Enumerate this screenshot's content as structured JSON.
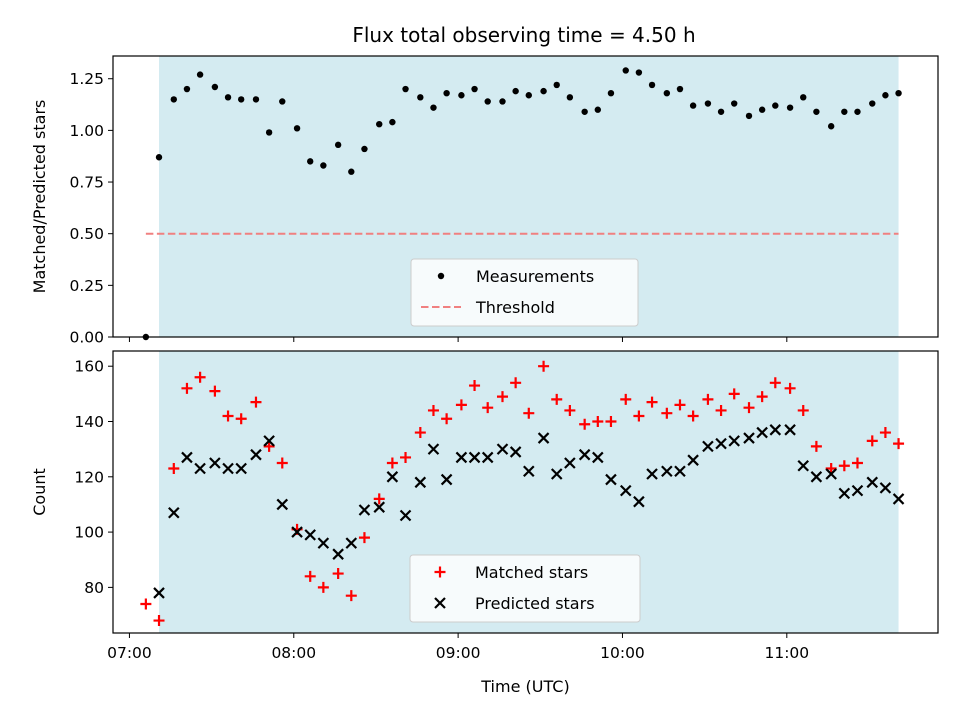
{
  "chart_data": {
    "title": "Flux total observing time = 4.50 h",
    "xlabel": "Time (UTC)",
    "x_ticks": [
      "07:00",
      "08:00",
      "09:00",
      "10:00",
      "11:00"
    ],
    "x_tick_values": [
      7.0,
      8.0,
      9.0,
      10.0,
      11.0
    ],
    "xlim": [
      6.9,
      11.92
    ],
    "observing_window": [
      7.18,
      11.68
    ],
    "colors": {
      "window": "#d4ebf1",
      "measurements": "#000000",
      "threshold": "#f08080",
      "matched": "#ff0000",
      "predicted": "#000000"
    },
    "panels": [
      {
        "type": "scatter",
        "ylabel": "Matched/Predicted stars",
        "ylim": [
          0.0,
          1.36
        ],
        "y_ticks": [
          "0.00",
          "0.25",
          "0.50",
          "0.75",
          "1.00",
          "1.25"
        ],
        "y_tick_values": [
          0.0,
          0.25,
          0.5,
          0.75,
          1.0,
          1.25
        ],
        "legend_position": "lower-center",
        "series": [
          {
            "name": "Measurements",
            "marker": "dot",
            "x": [
              7.1,
              7.18,
              7.27,
              7.35,
              7.43,
              7.52,
              7.6,
              7.68,
              7.77,
              7.85,
              7.93,
              8.02,
              8.1,
              8.18,
              8.27,
              8.35,
              8.43,
              8.52,
              8.6,
              8.68,
              8.77,
              8.85,
              8.93,
              9.02,
              9.1,
              9.18,
              9.27,
              9.35,
              9.43,
              9.52,
              9.6,
              9.68,
              9.77,
              9.85,
              9.93,
              10.02,
              10.1,
              10.18,
              10.27,
              10.35,
              10.43,
              10.52,
              10.6,
              10.68,
              10.77,
              10.85,
              10.93,
              11.02,
              11.1,
              11.18,
              11.27,
              11.35,
              11.43,
              11.52,
              11.6,
              11.68
            ],
            "y": [
              0.0,
              0.87,
              1.15,
              1.2,
              1.27,
              1.21,
              1.16,
              1.15,
              1.15,
              0.99,
              1.14,
              1.01,
              0.85,
              0.83,
              0.93,
              0.8,
              0.91,
              1.03,
              1.04,
              1.2,
              1.16,
              1.11,
              1.18,
              1.17,
              1.2,
              1.14,
              1.14,
              1.19,
              1.17,
              1.19,
              1.22,
              1.16,
              1.09,
              1.1,
              1.18,
              1.29,
              1.28,
              1.22,
              1.18,
              1.2,
              1.12,
              1.13,
              1.09,
              1.13,
              1.07,
              1.1,
              1.12,
              1.11,
              1.16,
              1.09,
              1.02,
              1.09,
              1.09,
              1.13,
              1.17,
              1.18
            ]
          },
          {
            "name": "Threshold",
            "marker": "dashed-line",
            "x": [
              7.1,
              11.68
            ],
            "y": [
              0.5,
              0.5
            ]
          }
        ]
      },
      {
        "type": "scatter",
        "ylabel": "Count",
        "ylim": [
          63.5,
          165.5
        ],
        "y_ticks": [
          "80",
          "100",
          "120",
          "140",
          "160"
        ],
        "y_tick_values": [
          80,
          100,
          120,
          140,
          160
        ],
        "legend_position": "lower-center",
        "series": [
          {
            "name": "Matched stars",
            "marker": "plus",
            "x": [
              7.1,
              7.18,
              7.27,
              7.35,
              7.43,
              7.52,
              7.6,
              7.68,
              7.77,
              7.85,
              7.93,
              8.02,
              8.1,
              8.18,
              8.27,
              8.35,
              8.43,
              8.52,
              8.6,
              8.68,
              8.77,
              8.85,
              8.93,
              9.02,
              9.1,
              9.18,
              9.27,
              9.35,
              9.43,
              9.52,
              9.6,
              9.68,
              9.77,
              9.85,
              9.93,
              10.02,
              10.1,
              10.18,
              10.27,
              10.35,
              10.43,
              10.52,
              10.6,
              10.68,
              10.77,
              10.85,
              10.93,
              11.02,
              11.1,
              11.18,
              11.27,
              11.35,
              11.43,
              11.52,
              11.6,
              11.68
            ],
            "y": [
              74,
              68,
              123,
              152,
              156,
              151,
              142,
              141,
              147,
              131,
              125,
              101,
              84,
              80,
              85,
              77,
              98,
              112,
              125,
              127,
              136,
              144,
              141,
              146,
              153,
              145,
              149,
              154,
              143,
              160,
              148,
              144,
              139,
              140,
              140,
              148,
              142,
              147,
              143,
              146,
              142,
              148,
              144,
              150,
              145,
              149,
              154,
              152,
              144,
              131,
              123,
              124,
              125,
              133,
              136,
              132
            ]
          },
          {
            "name": "Predicted stars",
            "marker": "x",
            "x": [
              7.18,
              7.27,
              7.35,
              7.43,
              7.52,
              7.6,
              7.68,
              7.77,
              7.85,
              7.93,
              8.02,
              8.1,
              8.18,
              8.27,
              8.35,
              8.43,
              8.52,
              8.6,
              8.68,
              8.77,
              8.85,
              8.93,
              9.02,
              9.1,
              9.18,
              9.27,
              9.35,
              9.43,
              9.52,
              9.6,
              9.68,
              9.77,
              9.85,
              9.93,
              10.02,
              10.1,
              10.18,
              10.27,
              10.35,
              10.43,
              10.52,
              10.6,
              10.68,
              10.77,
              10.85,
              10.93,
              11.02,
              11.1,
              11.18,
              11.27,
              11.35,
              11.43,
              11.52,
              11.6,
              11.68
            ],
            "y": [
              78,
              107,
              127,
              123,
              125,
              123,
              123,
              128,
              133,
              110,
              100,
              99,
              96,
              92,
              96,
              108,
              109,
              120,
              106,
              118,
              130,
              119,
              127,
              127,
              127,
              130,
              129,
              122,
              134,
              121,
              125,
              128,
              127,
              119,
              115,
              111,
              121,
              122,
              122,
              126,
              131,
              132,
              133,
              134,
              136,
              137,
              137,
              124,
              120,
              121,
              114,
              115,
              118,
              116,
              112
            ]
          }
        ]
      }
    ]
  }
}
